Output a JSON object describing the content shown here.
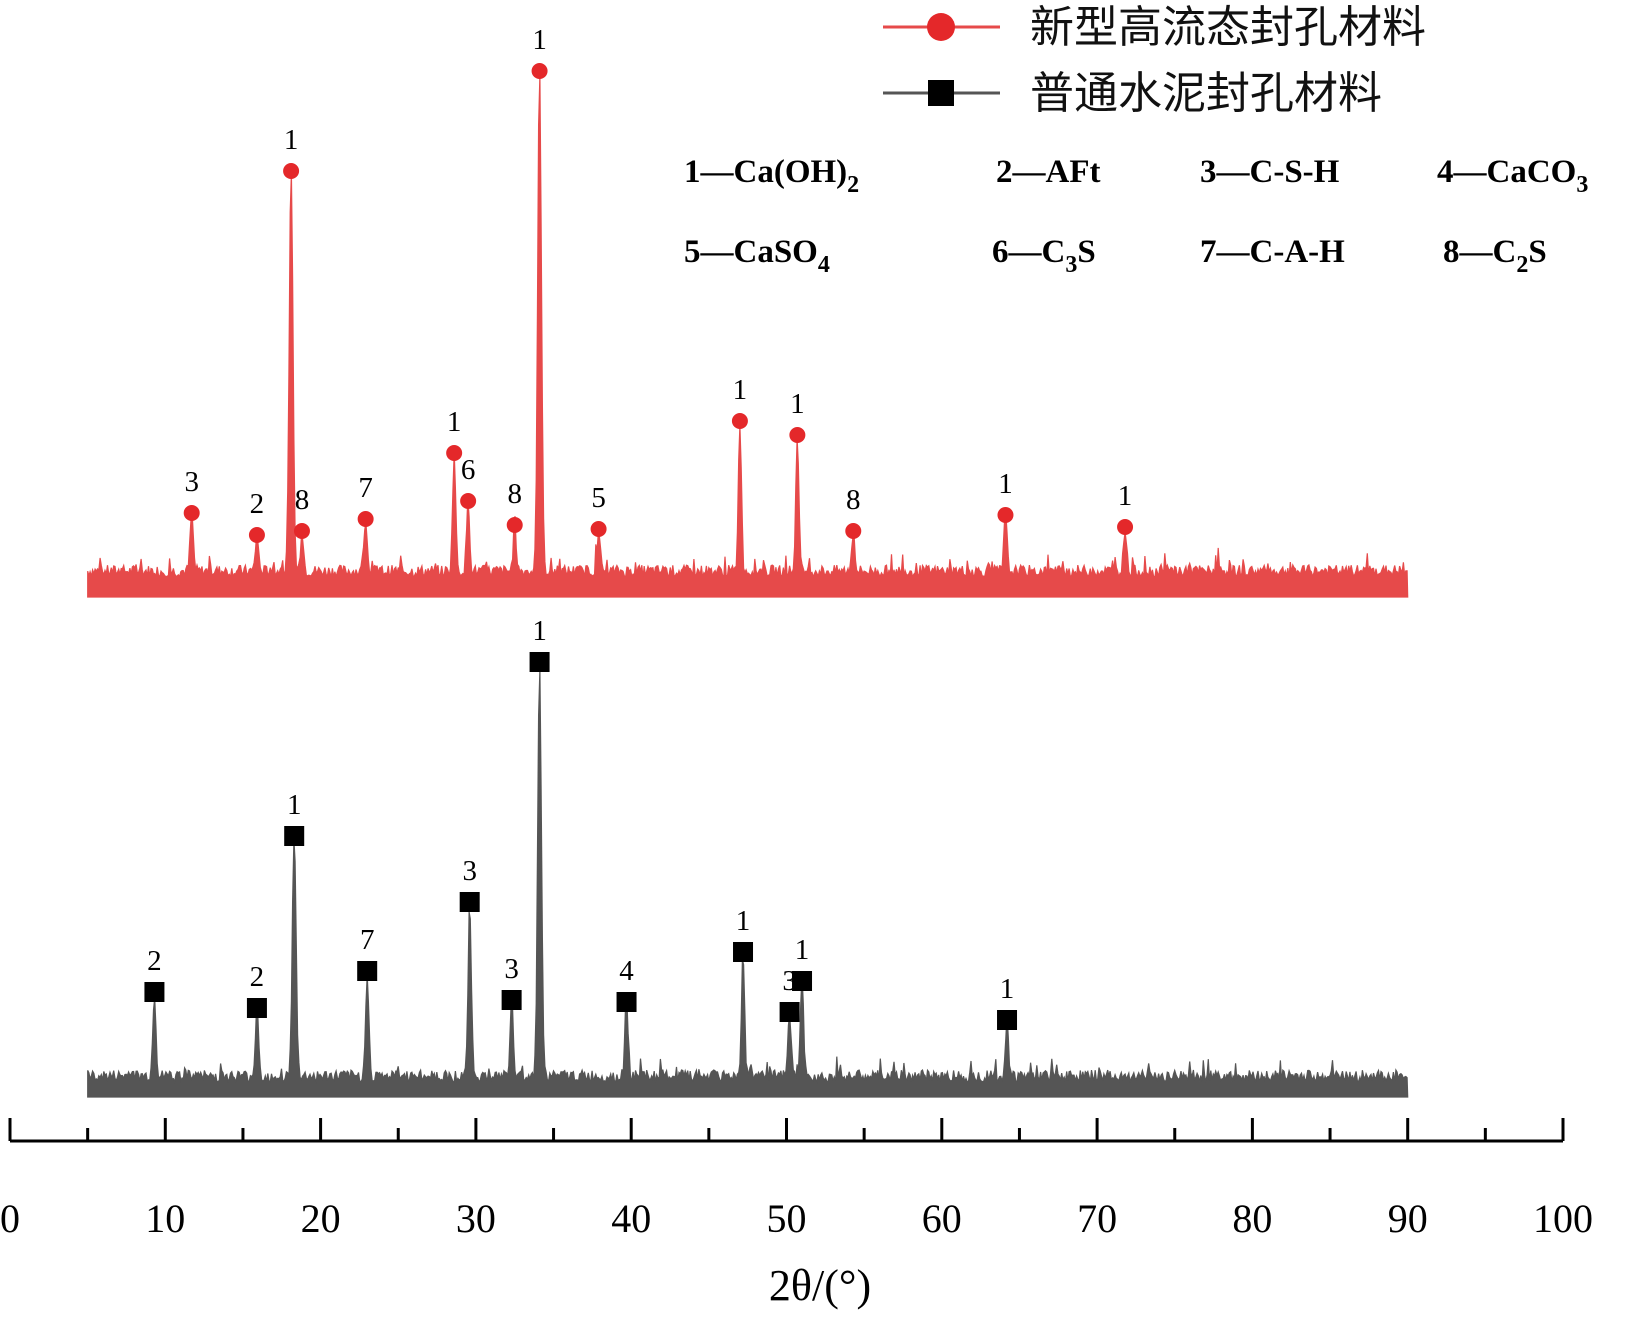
{
  "colors": {
    "series_new": "#e4282a",
    "series_new_line": "#e64a4a",
    "series_cement": "#555555",
    "axis": "#000000"
  },
  "legend_icons": [
    "circle-marker-icon",
    "square-marker-icon"
  ],
  "chart_data": {
    "type": "line",
    "xlabel": "2θ/(°)",
    "xlim": [
      0,
      100
    ],
    "x_ticks": [
      "0",
      "10",
      "20",
      "30",
      "40",
      "50",
      "60",
      "70",
      "80",
      "90",
      "100"
    ],
    "x_range_data": [
      5,
      90
    ],
    "yaxis": "none",
    "grid": false,
    "legend_position": "top-right",
    "series": [
      {
        "name": "新型高流态封孔材料",
        "marker": "circle",
        "baseline": 20,
        "noise": 6,
        "peaks": [
          {
            "x": 11.7,
            "h": 58,
            "label": "3"
          },
          {
            "x": 15.9,
            "h": 36,
            "label": "2"
          },
          {
            "x": 18.1,
            "h": 400,
            "label": "1"
          },
          {
            "x": 18.8,
            "h": 40,
            "label": "8"
          },
          {
            "x": 22.9,
            "h": 52,
            "label": "7"
          },
          {
            "x": 28.6,
            "h": 118,
            "label": "1"
          },
          {
            "x": 29.5,
            "h": 70,
            "label": "6"
          },
          {
            "x": 32.5,
            "h": 46,
            "label": "8"
          },
          {
            "x": 34.1,
            "h": 500,
            "label": "1"
          },
          {
            "x": 37.9,
            "h": 42,
            "label": "5"
          },
          {
            "x": 47.0,
            "h": 150,
            "label": "1"
          },
          {
            "x": 50.7,
            "h": 136,
            "label": "1"
          },
          {
            "x": 54.3,
            "h": 40,
            "label": "8"
          },
          {
            "x": 64.1,
            "h": 56,
            "label": "1"
          },
          {
            "x": 71.8,
            "h": 44,
            "label": "1"
          }
        ]
      },
      {
        "name": "普通水泥封孔材料",
        "marker": "square",
        "baseline": 15,
        "noise": 6,
        "peaks": [
          {
            "x": 9.3,
            "h": 84,
            "label": "2"
          },
          {
            "x": 15.9,
            "h": 68,
            "label": "2"
          },
          {
            "x": 18.3,
            "h": 240,
            "label": "1"
          },
          {
            "x": 23.0,
            "h": 105,
            "label": "7"
          },
          {
            "x": 29.6,
            "h": 174,
            "label": "3"
          },
          {
            "x": 32.3,
            "h": 76,
            "label": "3"
          },
          {
            "x": 34.1,
            "h": 414,
            "label": "1"
          },
          {
            "x": 39.7,
            "h": 74,
            "label": "4"
          },
          {
            "x": 47.2,
            "h": 124,
            "label": "1"
          },
          {
            "x": 50.2,
            "h": 64,
            "label": "3"
          },
          {
            "x": 51.0,
            "h": 95,
            "label": "1"
          },
          {
            "x": 64.2,
            "h": 56,
            "label": "1"
          }
        ]
      }
    ],
    "phase_key": [
      {
        "num": "1—Ca(OH)",
        "sub": "2"
      },
      {
        "num": "2—AFt",
        "sub": ""
      },
      {
        "num": "3—C-S-H",
        "sub": ""
      },
      {
        "num": "4—CaCO",
        "sub": "3"
      },
      {
        "num": "5—CaSO",
        "sub": "4"
      },
      {
        "num": "6—C",
        "sub": "3",
        "tail": "S"
      },
      {
        "num": "7—C-A-H",
        "sub": ""
      },
      {
        "num": "8—C",
        "sub": "2",
        "tail": "S"
      }
    ]
  }
}
